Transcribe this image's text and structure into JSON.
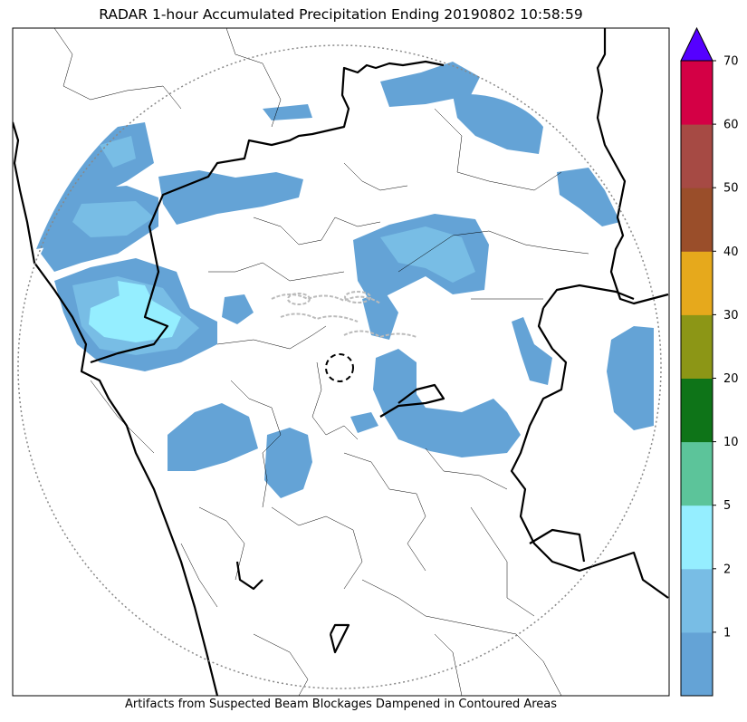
{
  "title": "RADAR 1-hour Accumulated Precipitation Ending 20190802 10:58:59",
  "caption": "Artifacts from Suspected Beam Blockages Dampened in Contoured Areas",
  "colorbar": {
    "bins": [
      {
        "label": "",
        "color": "#64a3d6"
      },
      {
        "label": "1",
        "color": "#78bde5"
      },
      {
        "label": "2",
        "color": "#95eeff"
      },
      {
        "label": "5",
        "color": "#5cc49a"
      },
      {
        "label": "10",
        "color": "#0e7418"
      },
      {
        "label": "20",
        "color": "#8c9616"
      },
      {
        "label": "30",
        "color": "#e6a91c"
      },
      {
        "label": "40",
        "color": "#9a4e2a"
      },
      {
        "label": "50",
        "color": "#a64a44"
      },
      {
        "label": "60",
        "color": "#d40045"
      }
    ],
    "top_label": "70",
    "extend_color": "#5500ff"
  },
  "colors": {
    "rain_light": "#64a3d6",
    "rain_mid": "#78bde5",
    "rain_heavy": "#95eeff",
    "border": "#000000",
    "range_ring": "#888888",
    "blockage_contour": "#bbbbbb"
  }
}
